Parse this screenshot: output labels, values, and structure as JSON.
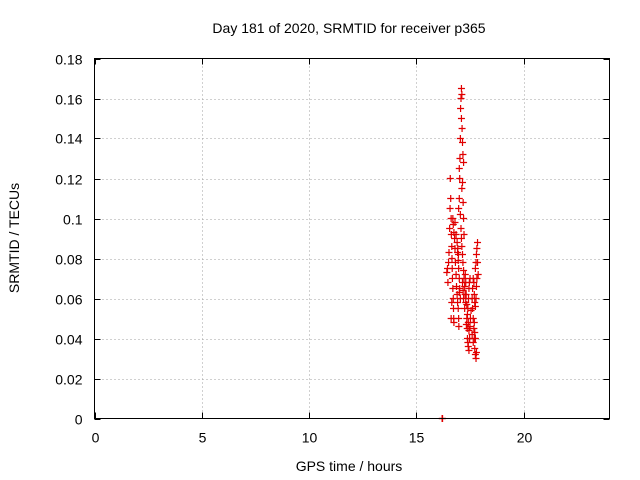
{
  "chart_data": {
    "type": "scatter",
    "title": "Day 181 of 2020, SRMTID for receiver p365",
    "xlabel": "GPS time / hours",
    "ylabel": "SRMTID / TECUs",
    "xlim": [
      0,
      24
    ],
    "ylim": [
      0,
      0.18
    ],
    "xticks": [
      0,
      5,
      10,
      15,
      20
    ],
    "xtick_labels": [
      "0",
      "5",
      "10",
      "15",
      "20"
    ],
    "yticks": [
      0,
      0.02,
      0.04,
      0.06,
      0.08,
      0.1,
      0.12,
      0.14,
      0.16,
      0.18
    ],
    "ytick_labels": [
      "0",
      "0.02",
      "0.04",
      "0.06",
      "0.08",
      "0.1",
      "0.12",
      "0.14",
      "0.16",
      "0.18"
    ],
    "grid": true,
    "marker": "plus",
    "color": "#e00000",
    "series": [
      {
        "points": [
          [
            16.2,
            0.0
          ],
          [
            16.22,
            0.0
          ],
          [
            16.42,
            0.073
          ],
          [
            16.45,
            0.075
          ],
          [
            16.47,
            0.068
          ],
          [
            16.5,
            0.078
          ],
          [
            16.52,
            0.083
          ],
          [
            16.55,
            0.095
          ],
          [
            16.57,
            0.105
          ],
          [
            16.58,
            0.12
          ],
          [
            16.6,
            0.11
          ],
          [
            16.62,
            0.1
          ],
          [
            16.63,
            0.092
          ],
          [
            16.65,
            0.086
          ],
          [
            16.66,
            0.08
          ],
          [
            16.67,
            0.075
          ],
          [
            16.68,
            0.07
          ],
          [
            16.7,
            0.065
          ],
          [
            16.72,
            0.06
          ],
          [
            16.73,
            0.055
          ],
          [
            16.74,
            0.05
          ],
          [
            16.75,
            0.048
          ],
          [
            16.62,
            0.05
          ],
          [
            16.65,
            0.058
          ],
          [
            16.7,
            0.1
          ],
          [
            16.72,
            0.097
          ],
          [
            16.75,
            0.093
          ],
          [
            16.78,
            0.09
          ],
          [
            16.8,
            0.085
          ],
          [
            16.82,
            0.078
          ],
          [
            16.85,
            0.072
          ],
          [
            16.87,
            0.066
          ],
          [
            16.9,
            0.062
          ],
          [
            16.92,
            0.058
          ],
          [
            16.95,
            0.055
          ],
          [
            16.97,
            0.05
          ],
          [
            16.98,
            0.046
          ],
          [
            16.8,
            0.098
          ],
          [
            16.85,
            0.092
          ],
          [
            16.9,
            0.088
          ],
          [
            16.92,
            0.083
          ],
          [
            16.95,
            0.079
          ],
          [
            16.97,
            0.075
          ],
          [
            17.0,
            0.07
          ],
          [
            17.02,
            0.065
          ],
          [
            17.05,
            0.06
          ],
          [
            16.93,
            0.085
          ],
          [
            16.96,
            0.082
          ],
          [
            17.0,
            0.063
          ],
          [
            16.97,
            0.105
          ],
          [
            17.0,
            0.11
          ],
          [
            17.0,
            0.125
          ],
          [
            17.02,
            0.12
          ],
          [
            17.03,
            0.13
          ],
          [
            17.05,
            0.14
          ],
          [
            17.06,
            0.155
          ],
          [
            17.08,
            0.16
          ],
          [
            17.1,
            0.165
          ],
          [
            17.12,
            0.162
          ],
          [
            17.1,
            0.15
          ],
          [
            17.13,
            0.145
          ],
          [
            17.15,
            0.138
          ],
          [
            17.17,
            0.132
          ],
          [
            17.2,
            0.128
          ],
          [
            17.15,
            0.118
          ],
          [
            17.12,
            0.115
          ],
          [
            17.18,
            0.108
          ],
          [
            17.2,
            0.1
          ],
          [
            17.22,
            0.092
          ],
          [
            17.05,
            0.102
          ],
          [
            17.08,
            0.095
          ],
          [
            17.1,
            0.09
          ],
          [
            17.12,
            0.086
          ],
          [
            17.15,
            0.082
          ],
          [
            17.17,
            0.078
          ],
          [
            17.2,
            0.074
          ],
          [
            17.22,
            0.07
          ],
          [
            17.25,
            0.066
          ],
          [
            17.27,
            0.062
          ],
          [
            17.3,
            0.058
          ],
          [
            17.15,
            0.068
          ],
          [
            17.18,
            0.064
          ],
          [
            17.2,
            0.06
          ],
          [
            17.25,
            0.055
          ],
          [
            17.28,
            0.072
          ],
          [
            17.3,
            0.068
          ],
          [
            17.32,
            0.062
          ],
          [
            17.35,
            0.05
          ],
          [
            17.37,
            0.045
          ],
          [
            17.38,
            0.04
          ],
          [
            17.4,
            0.038
          ],
          [
            17.42,
            0.036
          ],
          [
            17.45,
            0.034
          ],
          [
            17.4,
            0.055
          ],
          [
            17.43,
            0.06
          ],
          [
            17.45,
            0.065
          ],
          [
            17.47,
            0.068
          ],
          [
            17.5,
            0.07
          ],
          [
            17.42,
            0.048
          ],
          [
            17.45,
            0.044
          ],
          [
            17.48,
            0.04
          ],
          [
            17.5,
            0.046
          ],
          [
            17.52,
            0.05
          ],
          [
            17.55,
            0.054
          ],
          [
            17.38,
            0.052
          ],
          [
            17.35,
            0.057
          ],
          [
            17.33,
            0.047
          ],
          [
            17.6,
            0.06
          ],
          [
            17.62,
            0.055
          ],
          [
            17.65,
            0.05
          ],
          [
            17.68,
            0.045
          ],
          [
            17.7,
            0.04
          ],
          [
            17.72,
            0.035
          ],
          [
            17.75,
            0.032
          ],
          [
            17.78,
            0.03
          ],
          [
            17.8,
            0.033
          ],
          [
            17.62,
            0.065
          ],
          [
            17.65,
            0.07
          ],
          [
            17.68,
            0.068
          ],
          [
            17.7,
            0.062
          ],
          [
            17.72,
            0.058
          ],
          [
            17.75,
            0.056
          ],
          [
            17.78,
            0.06
          ],
          [
            17.8,
            0.066
          ],
          [
            17.82,
            0.07
          ],
          [
            17.75,
            0.075
          ],
          [
            17.78,
            0.078
          ],
          [
            17.8,
            0.082
          ],
          [
            17.82,
            0.085
          ],
          [
            17.85,
            0.088
          ],
          [
            17.85,
            0.078
          ],
          [
            17.88,
            0.072
          ],
          [
            17.7,
            0.048
          ],
          [
            17.72,
            0.043
          ],
          [
            17.75,
            0.04
          ],
          [
            17.65,
            0.038
          ],
          [
            17.6,
            0.042
          ]
        ]
      }
    ]
  }
}
